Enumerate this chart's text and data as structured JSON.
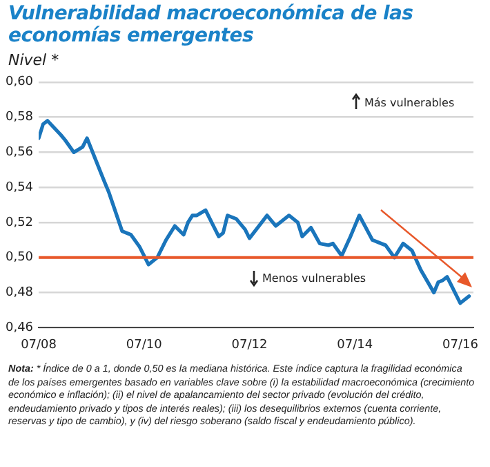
{
  "chart_data": {
    "type": "line",
    "title": "Vulnerabilidad macroeconómica de las economías emergentes",
    "ylabel": "Nivel *",
    "x": [
      "2008-07",
      "2008-08",
      "2008-09",
      "2008-12",
      "2009-01",
      "2009-03",
      "2009-05",
      "2009-06",
      "2009-10",
      "2009-11",
      "2010-02",
      "2010-04",
      "2010-06",
      "2010-08",
      "2010-10",
      "2010-12",
      "2011-02",
      "2011-04",
      "2011-05",
      "2011-06",
      "2011-07",
      "2011-09",
      "2011-12",
      "2012-01",
      "2012-02",
      "2012-04",
      "2012-06",
      "2012-07",
      "2012-11",
      "2013-01",
      "2013-04",
      "2013-06",
      "2013-07",
      "2013-09",
      "2013-11",
      "2014-01",
      "2014-02",
      "2014-04",
      "2014-06",
      "2014-08",
      "2014-11",
      "2015-01",
      "2015-02",
      "2015-04",
      "2015-06",
      "2015-08",
      "2015-10",
      "2016-01",
      "2016-02",
      "2016-03",
      "2016-04",
      "2016-07",
      "2016-09"
    ],
    "series": [
      {
        "color": "#1a75bb",
        "values": [
          0.568,
          0.576,
          0.578,
          0.57,
          0.567,
          0.56,
          0.563,
          0.568,
          0.543,
          0.537,
          0.515,
          0.513,
          0.506,
          0.496,
          0.5,
          0.51,
          0.518,
          0.513,
          0.52,
          0.524,
          0.524,
          0.527,
          0.512,
          0.514,
          0.524,
          0.522,
          0.516,
          0.511,
          0.524,
          0.518,
          0.524,
          0.52,
          0.512,
          0.517,
          0.508,
          0.507,
          0.508,
          0.501,
          0.512,
          0.524,
          0.51,
          0.508,
          0.507,
          0.5,
          0.508,
          0.504,
          0.493,
          0.48,
          0.486,
          0.487,
          0.489,
          0.474,
          0.478
        ]
      }
    ],
    "xlim": [
      "2008-07",
      "2016-10"
    ],
    "xticks": [
      {
        "value": "2008-07",
        "label": "07/08"
      },
      {
        "value": "2010-07",
        "label": "07/10"
      },
      {
        "value": "2012-07",
        "label": "07/12"
      },
      {
        "value": "2014-07",
        "label": "07/14"
      },
      {
        "value": "2016-07",
        "label": "07/16"
      }
    ],
    "ylim": [
      0.46,
      0.6
    ],
    "yticks": [
      {
        "value": 0.46,
        "label": "0,46"
      },
      {
        "value": 0.48,
        "label": "0,48"
      },
      {
        "value": 0.5,
        "label": "0,50"
      },
      {
        "value": 0.52,
        "label": "0,52"
      },
      {
        "value": 0.54,
        "label": "0,54"
      },
      {
        "value": 0.56,
        "label": "0,56"
      },
      {
        "value": 0.58,
        "label": "0,58"
      },
      {
        "value": 0.6,
        "label": "0,60"
      }
    ],
    "ref_lines": [
      {
        "axis": "y",
        "value": 0.5,
        "color": "#e8582a"
      }
    ],
    "grid": "y",
    "legend": false,
    "marker": "none",
    "line_style": "solid",
    "annotations": [
      "Más vulnerables",
      "Menos vulnerables",
      "Nota: * Índice de 0 a 1, donde 0,50 es la mediana histórica. Este índice captura la fragilidad económica de los países emergentes basado en variables clave sobre (i) la estabilidad macroeconómica (crecimiento económico e inflación); (ii) el nivel de apalancamiento del sector privado (evolución del crédito, endeudamiento privado y tipos de interés reales); (iii) los desequilibrios externos (cuenta corriente, reservas y tipo de cambio), y (iv) del riesgo soberano (saldo fiscal y endeudamiento público)."
    ]
  }
}
